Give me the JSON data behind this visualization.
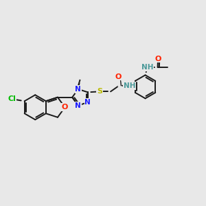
{
  "bg_color": "#e8e8e8",
  "bond_color": "#1a1a1a",
  "bond_width": 1.4,
  "atom_colors": {
    "Cl": "#00bb00",
    "O": "#ff2200",
    "N": "#1a1aff",
    "NH": "#4a9999",
    "S": "#bbbb00",
    "C": "#1a1a1a"
  },
  "figsize": [
    3.0,
    3.0
  ],
  "dpi": 100,
  "xlim": [
    0,
    12
  ],
  "ylim": [
    0,
    12
  ]
}
